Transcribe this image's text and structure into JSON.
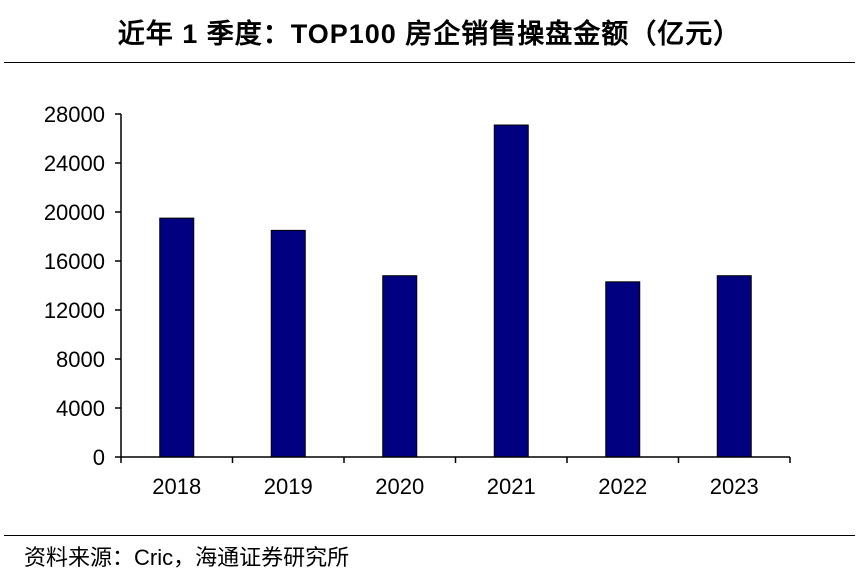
{
  "header": {
    "title": "近年 1 季度：TOP100 房企销售操盘金额（亿元）"
  },
  "footer": {
    "source": "资料来源：Cric，海通证券研究所"
  },
  "colors": {
    "bar": "#000080",
    "axis": "#000000"
  },
  "chart_data": {
    "type": "bar",
    "title": "近年 1 季度：TOP100 房企销售操盘金额（亿元）",
    "categories": [
      "2018",
      "2019",
      "2020",
      "2021",
      "2022",
      "2023"
    ],
    "values": [
      19500,
      18500,
      14800,
      27100,
      14300,
      14800
    ],
    "ylim": [
      0,
      28000
    ],
    "yticks": [
      "0",
      "4000",
      "8000",
      "12000",
      "16000",
      "20000",
      "24000",
      "28000"
    ],
    "xlabel": "",
    "ylabel": "",
    "grid": false,
    "legend": "none"
  }
}
